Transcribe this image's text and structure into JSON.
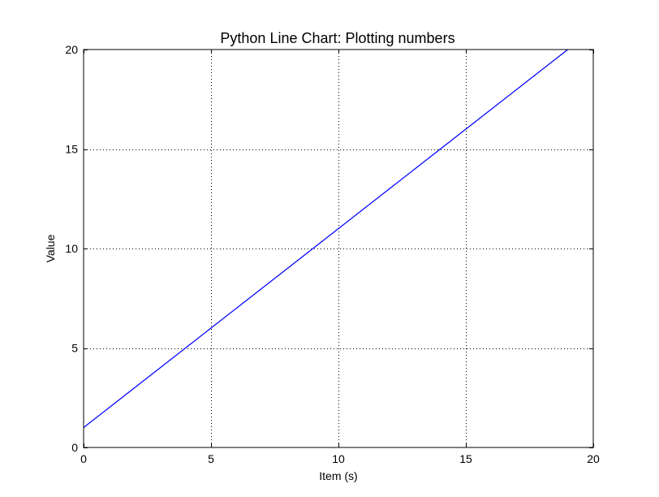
{
  "chart_data": {
    "type": "line",
    "title": "Python Line Chart: Plotting numbers",
    "xlabel": "Item (s)",
    "ylabel": "Value",
    "xlim": [
      0,
      20
    ],
    "ylim": [
      0,
      20
    ],
    "xticks": [
      0,
      5,
      10,
      15,
      20
    ],
    "yticks": [
      0,
      5,
      10,
      15,
      20
    ],
    "grid": true,
    "series": [
      {
        "color": "#0000ff",
        "x": [
          0,
          1,
          2,
          3,
          4,
          5,
          6,
          7,
          8,
          9,
          10,
          11,
          12,
          13,
          14,
          15,
          16,
          17,
          18,
          19
        ],
        "y": [
          1,
          2,
          3,
          4,
          5,
          6,
          7,
          8,
          9,
          10,
          11,
          12,
          13,
          14,
          15,
          16,
          17,
          18,
          19,
          20
        ]
      }
    ]
  }
}
